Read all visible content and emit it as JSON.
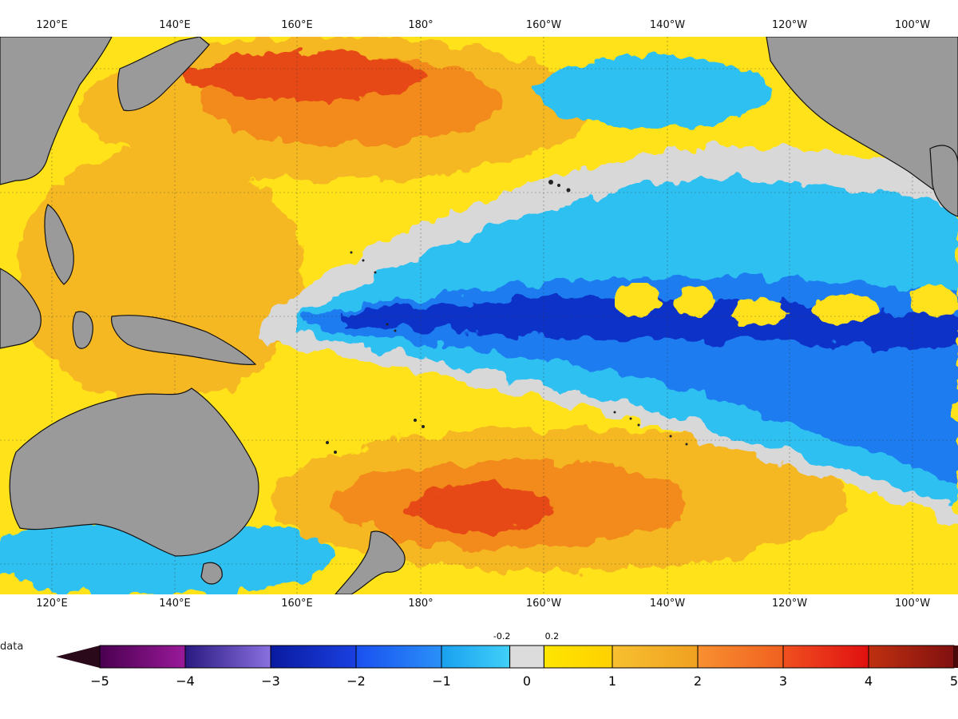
{
  "map": {
    "lon_ticks": [
      "120°E",
      "140°E",
      "160°E",
      "180°",
      "160°W",
      "140°W",
      "120°W",
      "100°W"
    ],
    "colors": {
      "land": "#9a9a9a",
      "neutral": "#d8d8d8",
      "warm_1": "#ffe21a",
      "warm_2": "#f5b820",
      "warm_3": "#f38a1c",
      "warm_4": "#e64a12",
      "cold_1": "#2fc0f0",
      "cold_2": "#1f7cf0",
      "cold_3": "#1030c8"
    }
  },
  "colorbar": {
    "nodata_label": "data",
    "tick_labels": [
      "−5",
      "−4",
      "−3",
      "−2",
      "−1",
      "0",
      "1",
      "2",
      "3",
      "4",
      "5"
    ],
    "inner_labels": [
      "-0.2",
      "0.2"
    ],
    "bins": [
      {
        "from": -5,
        "to": -4,
        "c1": "#4a0050",
        "c2": "#9a1a9a"
      },
      {
        "from": -4,
        "to": -3,
        "c1": "#2a1a80",
        "c2": "#8a70e0"
      },
      {
        "from": -3,
        "to": -2,
        "c1": "#0a1aa0",
        "c2": "#1a40e0"
      },
      {
        "from": -2,
        "to": -1,
        "c1": "#1a50f0",
        "c2": "#2a90f8"
      },
      {
        "from": -1,
        "to": -0.2,
        "c1": "#1aa0f0",
        "c2": "#40d0f8"
      },
      {
        "from": -0.2,
        "to": 0.2,
        "c1": "#dcdcdc",
        "c2": "#dcdcdc"
      },
      {
        "from": 0.2,
        "to": 1,
        "c1": "#ffe600",
        "c2": "#ffd000"
      },
      {
        "from": 1,
        "to": 2,
        "c1": "#f8c030",
        "c2": "#f0a020"
      },
      {
        "from": 2,
        "to": 3,
        "c1": "#f89030",
        "c2": "#f06020"
      },
      {
        "from": 3,
        "to": 4,
        "c1": "#f05020",
        "c2": "#e01010"
      },
      {
        "from": 4,
        "to": 5,
        "c1": "#c03010",
        "c2": "#801010"
      }
    ]
  }
}
